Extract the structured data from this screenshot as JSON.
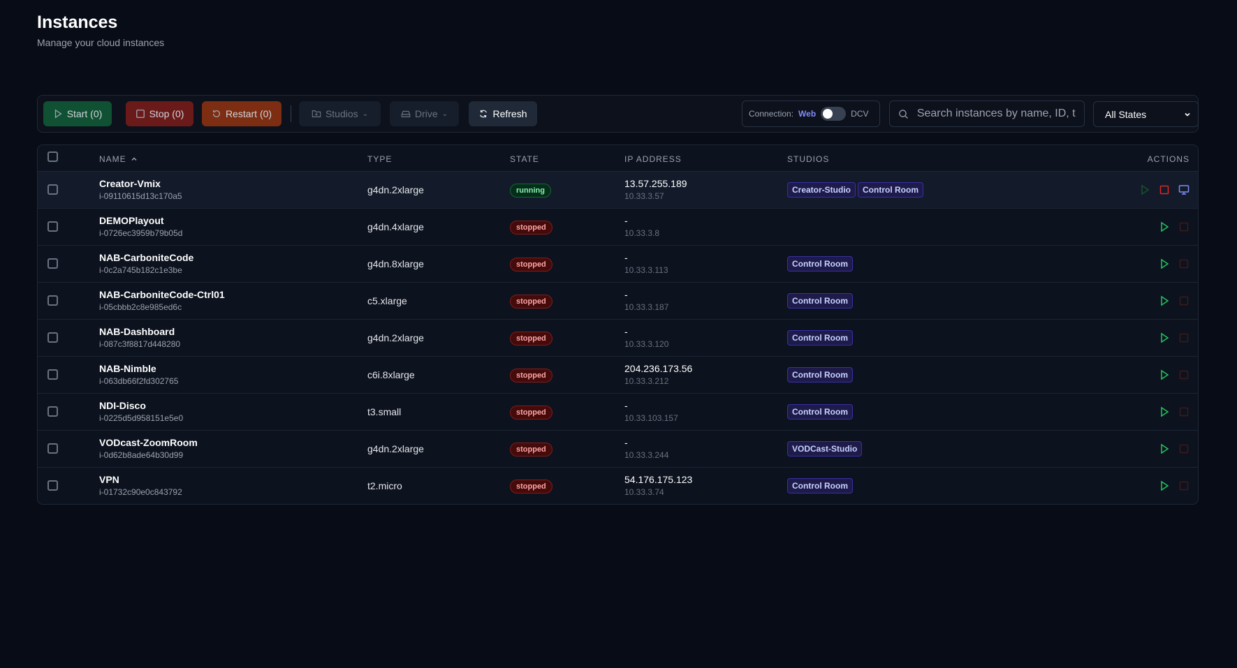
{
  "header": {
    "title": "Instances",
    "subtitle": "Manage your cloud instances"
  },
  "toolbar": {
    "start": "Start (0)",
    "stop": "Stop (0)",
    "restart": "Restart (0)",
    "studios": "Studios",
    "drive": "Drive",
    "refresh": "Refresh",
    "connection_label": "Connection:",
    "connection_web": "Web",
    "connection_dcv": "DCV",
    "connection_mode": "Web",
    "search_placeholder": "Search instances by name, ID, t",
    "state_filter": "All States"
  },
  "colors": {
    "start": "#0f5132",
    "stop": "#6b1a1a",
    "restart": "#7c2d12",
    "accent": "#818cf8"
  },
  "table": {
    "columns": [
      "NAME",
      "TYPE",
      "STATE",
      "IP ADDRESS",
      "STUDIOS",
      "ACTIONS"
    ],
    "sort": {
      "column": "NAME",
      "direction": "asc"
    },
    "rows": [
      {
        "name": "Creator-Vmix",
        "id": "i-09110615d13c170a5",
        "type": "g4dn.2xlarge",
        "state": "running",
        "ip": "13.57.255.189",
        "private_ip": "10.33.3.57",
        "studios": [
          "Creator-Studio",
          "Control Room"
        ]
      },
      {
        "name": "DEMOPlayout",
        "id": "i-0726ec3959b79b05d",
        "type": "g4dn.4xlarge",
        "state": "stopped",
        "ip": "-",
        "private_ip": "10.33.3.8",
        "studios": []
      },
      {
        "name": "NAB-CarboniteCode",
        "id": "i-0c2a745b182c1e3be",
        "type": "g4dn.8xlarge",
        "state": "stopped",
        "ip": "-",
        "private_ip": "10.33.3.113",
        "studios": [
          "Control Room"
        ]
      },
      {
        "name": "NAB-CarboniteCode-Ctrl01",
        "id": "i-05cbbb2c8e985ed6c",
        "type": "c5.xlarge",
        "state": "stopped",
        "ip": "-",
        "private_ip": "10.33.3.187",
        "studios": [
          "Control Room"
        ]
      },
      {
        "name": "NAB-Dashboard",
        "id": "i-087c3f8817d448280",
        "type": "g4dn.2xlarge",
        "state": "stopped",
        "ip": "-",
        "private_ip": "10.33.3.120",
        "studios": [
          "Control Room"
        ]
      },
      {
        "name": "NAB-Nimble",
        "id": "i-063db66f2fd302765",
        "type": "c6i.8xlarge",
        "state": "stopped",
        "ip": "204.236.173.56",
        "private_ip": "10.33.3.212",
        "studios": [
          "Control Room"
        ]
      },
      {
        "name": "NDI-Disco",
        "id": "i-0225d5d958151e5e0",
        "type": "t3.small",
        "state": "stopped",
        "ip": "-",
        "private_ip": "10.33.103.157",
        "studios": [
          "Control Room"
        ]
      },
      {
        "name": "VODcast-ZoomRoom",
        "id": "i-0d62b8ade64b30d99",
        "type": "g4dn.2xlarge",
        "state": "stopped",
        "ip": "-",
        "private_ip": "10.33.3.244",
        "studios": [
          "VODCast-Studio"
        ]
      },
      {
        "name": "VPN",
        "id": "i-01732c90e0c843792",
        "type": "t2.micro",
        "state": "stopped",
        "ip": "54.176.175.123",
        "private_ip": "10.33.3.74",
        "studios": [
          "Control Room"
        ]
      }
    ]
  }
}
